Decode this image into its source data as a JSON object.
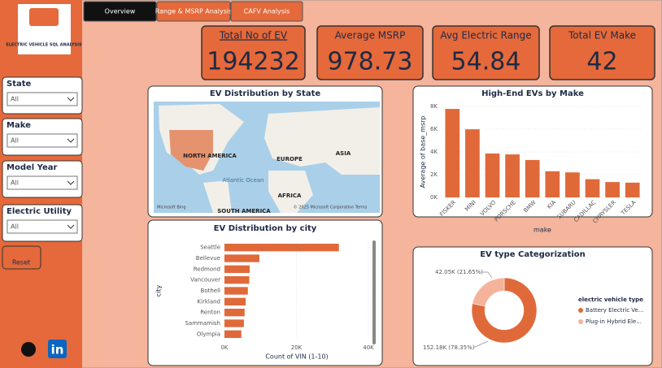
{
  "logo": "ELECTRIC VEHICLE SQL ANALYSIS",
  "tabs": [
    "Overview",
    "Range & MSRP Analysis",
    "CAFV Analysis"
  ],
  "filters": [
    {
      "label": "State",
      "value": "All"
    },
    {
      "label": "Make",
      "value": "All"
    },
    {
      "label": "Model Year",
      "value": "All"
    },
    {
      "label": "Electric Utility",
      "value": "All"
    }
  ],
  "reset": "Reset",
  "social": {
    "linkedin": "in"
  },
  "kpis": [
    {
      "title": "Total No of EV",
      "value": 194232
    },
    {
      "title": "Average MSRP",
      "value": 978.73
    },
    {
      "title": "Avg Electric Range",
      "value": 54.84
    },
    {
      "title": "Total EV Make",
      "value": 42
    }
  ],
  "chart_data": [
    {
      "type": "map",
      "title": "EV Distribution by State",
      "labels": [
        "NORTH AMERICA",
        "EUROPE",
        "ASIA",
        "Atlantic Ocean",
        "AFRICA",
        "SOUTH AMERICA"
      ],
      "credits": [
        "Microsoft Bing",
        "© 2025 Microsoft Corporation",
        "Terms"
      ]
    },
    {
      "type": "bar",
      "title": "High-End EVs by Make",
      "x_label": "make",
      "y_label": "Average of base_msrp",
      "color": "#e0693a",
      "categories": [
        "FISKER",
        "MINI",
        "VOLVO",
        "PORSCHE",
        "BMW",
        "KIA",
        "SUBARU",
        "CADILLAC",
        "CHRYSLER",
        "TESLA"
      ],
      "values": [
        7780,
        5990,
        3860,
        3780,
        3290,
        2300,
        2200,
        1600,
        1350,
        1300
      ],
      "ylim": [
        0,
        8000
      ],
      "yticks": [
        {
          "value": 0,
          "label": "0K"
        },
        {
          "value": 2000,
          "label": "2K"
        },
        {
          "value": 4000,
          "label": "4K"
        },
        {
          "value": 6000,
          "label": "6K"
        },
        {
          "value": 8000,
          "label": "8K"
        }
      ],
      "grid": true
    },
    {
      "type": "hbar",
      "title": "EV Distribution by city",
      "x_label": "Count of VIN (1-10)",
      "y_label": "city",
      "color": "#e0693a",
      "categories": [
        "Seattle",
        "Bellevue",
        "Redmond",
        "Vancouver",
        "Bothell",
        "Kirkland",
        "Renton",
        "Sammamish",
        "Olympia"
      ],
      "values": [
        31800,
        9700,
        7000,
        6900,
        6500,
        5900,
        5600,
        5400,
        4700
      ],
      "xlim": [
        0,
        40000
      ],
      "xticks": [
        {
          "value": 0,
          "label": "0K"
        },
        {
          "value": 20000,
          "label": "20K"
        },
        {
          "value": 40000,
          "label": "40K"
        }
      ],
      "grid": true
    },
    {
      "type": "donut",
      "title": "EV type Categorization",
      "legend_title": "electric vehicle type",
      "series": [
        {
          "name": "Battery Electric Ve...",
          "color": "#e0693a"
        },
        {
          "name": "Plug-in Hybrid Ele...",
          "color": "#f4b39a"
        }
      ],
      "values": [
        152180,
        42050
      ],
      "value_labels": [
        "152.18K (78.35%)",
        "42.05K (21.65%)"
      ]
    }
  ]
}
